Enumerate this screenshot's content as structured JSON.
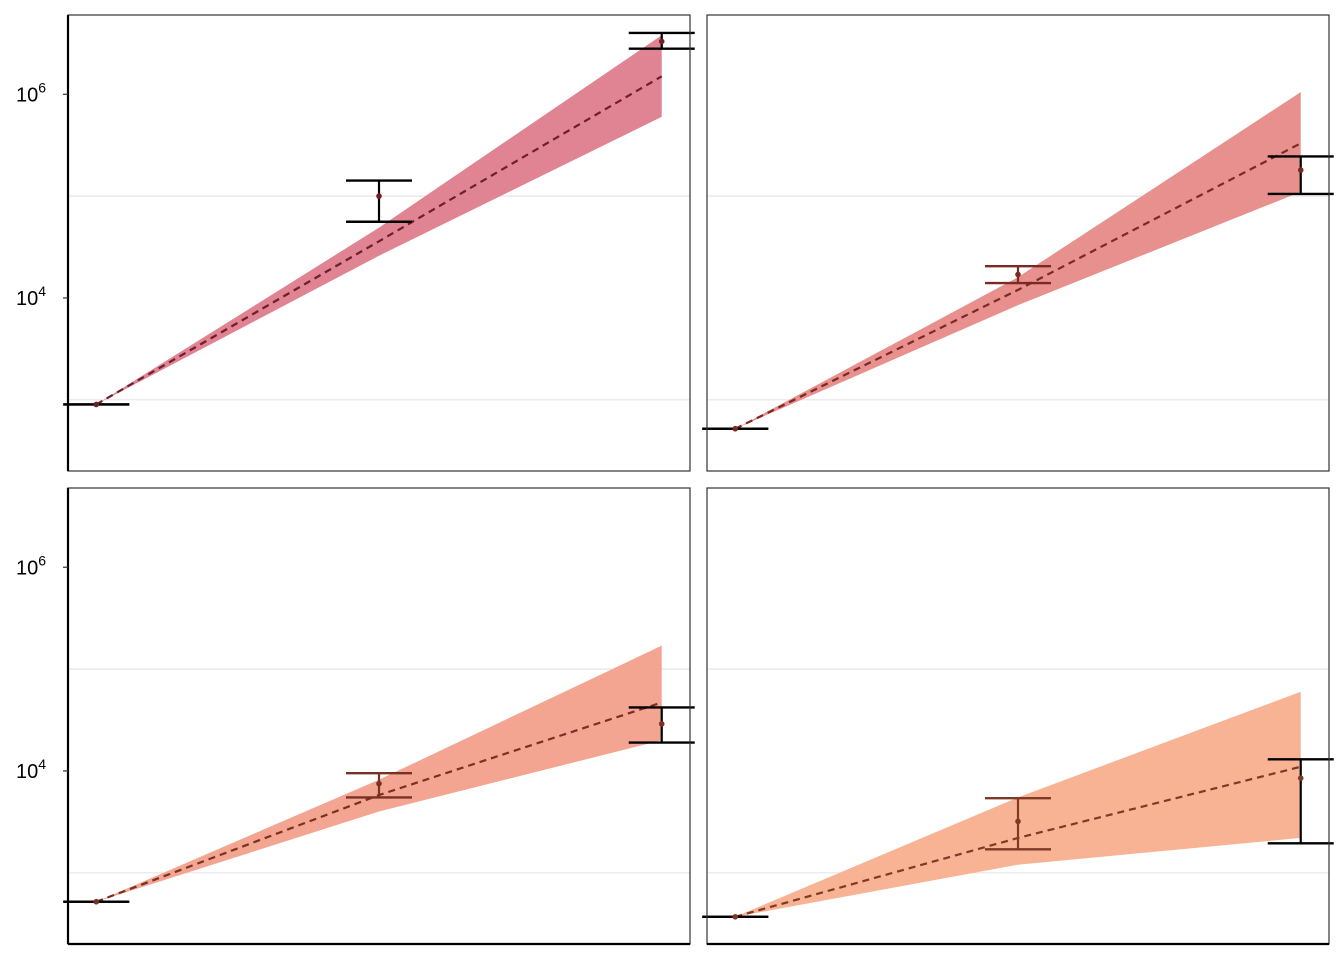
{
  "chart_data": {
    "type": "facet-line-band",
    "yscale": "log10",
    "ylim": [
      200,
      6000000
    ],
    "y_ticks": [
      {
        "value": 10000,
        "base": "10",
        "exp": "4"
      },
      {
        "value": 1000000,
        "base": "10",
        "exp": "6"
      }
    ],
    "minor_grid": [
      1000,
      100000
    ],
    "x_positions": [
      1,
      2,
      3
    ],
    "xlim": [
      0.9,
      3.1
    ],
    "panels": [
      {
        "color": "#e08494",
        "line_color": "#6e1f2a",
        "points": [
          {
            "x": 1,
            "y": 900,
            "lo": 900,
            "hi": 900,
            "bar": "black"
          },
          {
            "x": 2,
            "y": 100000,
            "lo": 56000,
            "hi": 142000,
            "bar": "black"
          },
          {
            "x": 3,
            "y": 3300000,
            "lo": 2800000,
            "hi": 4000000,
            "bar": "black"
          }
        ],
        "fit": [
          900,
          36000,
          1500000
        ],
        "band_lo": [
          900,
          26000,
          600000
        ],
        "band_hi": [
          900,
          49000,
          3800000
        ]
      },
      {
        "color": "#e8908e",
        "line_color": "#7a2a22",
        "points": [
          {
            "x": 1,
            "y": 520,
            "lo": 520,
            "hi": 520,
            "bar": "black"
          },
          {
            "x": 2,
            "y": 17000,
            "lo": 14000,
            "hi": 20500,
            "bar": "#7a2a22"
          },
          {
            "x": 3,
            "y": 180000,
            "lo": 105000,
            "hi": 245000,
            "bar": "black"
          }
        ],
        "fit": [
          520,
          12000,
          330000
        ],
        "band_lo": [
          520,
          8500,
          110000
        ],
        "band_hi": [
          520,
          16000,
          1050000
        ]
      },
      {
        "color": "#f4a592",
        "line_color": "#7a3022",
        "points": [
          {
            "x": 1,
            "y": 520,
            "lo": 520,
            "hi": 520,
            "bar": "black"
          },
          {
            "x": 2,
            "y": 7500,
            "lo": 5500,
            "hi": 9500,
            "bar": "#7a3022"
          },
          {
            "x": 3,
            "y": 29000,
            "lo": 19000,
            "hi": 42000,
            "bar": "black"
          }
        ],
        "fit": [
          520,
          5800,
          47000
        ],
        "band_lo": [
          520,
          4000,
          20000
        ],
        "band_hi": [
          520,
          8200,
          170000
        ]
      },
      {
        "color": "#f8b394",
        "line_color": "#7d3a25",
        "points": [
          {
            "x": 1,
            "y": 370,
            "lo": 370,
            "hi": 370,
            "bar": "black"
          },
          {
            "x": 2,
            "y": 3200,
            "lo": 1700,
            "hi": 5400,
            "bar": "#7d3a25"
          },
          {
            "x": 3,
            "y": 8500,
            "lo": 1950,
            "hi": 13000,
            "bar": "black"
          }
        ],
        "fit": [
          370,
          2200,
          11000
        ],
        "band_lo": [
          370,
          1200,
          2200
        ],
        "band_hi": [
          370,
          5500,
          60000
        ]
      }
    ]
  }
}
